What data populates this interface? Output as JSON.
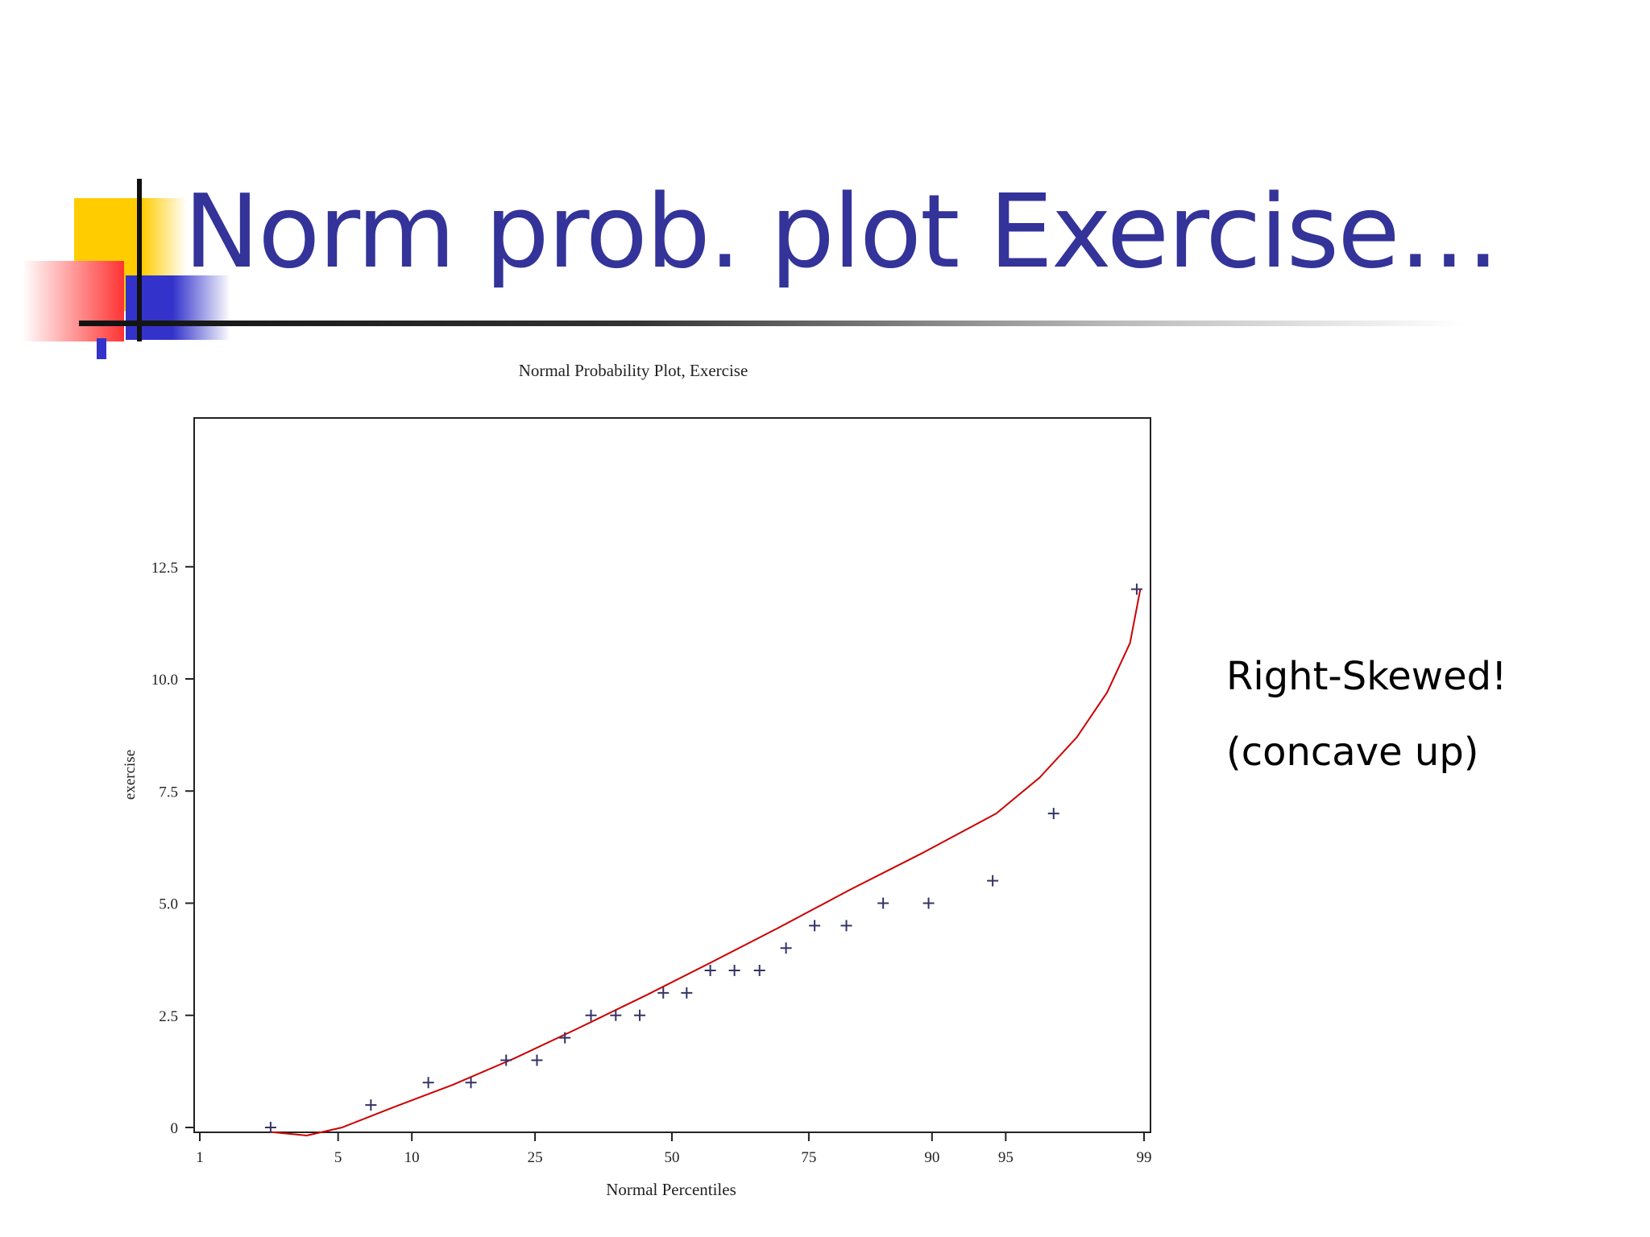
{
  "slide": {
    "title": "Norm prob. plot Exercise…",
    "notes": [
      "Right-Skewed!",
      "(concave up)"
    ]
  },
  "colors": {
    "title": "#333399",
    "deco_yellow": "#ffcc00",
    "deco_red": "#ff3333",
    "deco_blue": "#3333cc",
    "fit_curve": "#cc0000",
    "marker": "#333366"
  },
  "chart_data": {
    "type": "scatter",
    "title": "Normal Probability Plot, Exercise",
    "xlabel": "Normal Percentiles",
    "ylabel": "exercise",
    "x_scale": "normal-probability",
    "x_ticks": [
      1,
      5,
      10,
      25,
      50,
      75,
      90,
      95,
      99
    ],
    "y_ticks": [
      "0",
      "2.5",
      "5.0",
      "7.5",
      "10.0",
      "12.5"
    ],
    "ylim": [
      0,
      12.5
    ],
    "grid": false,
    "series": [
      {
        "marker": "plus",
        "points": [
          {
            "x": 2.4,
            "y": 0
          },
          {
            "x": 6.9,
            "y": 0.5
          },
          {
            "x": 11.5,
            "y": 1
          },
          {
            "x": 16.1,
            "y": 1
          },
          {
            "x": 20.7,
            "y": 1.5
          },
          {
            "x": 25.3,
            "y": 1.5
          },
          {
            "x": 29.9,
            "y": 2
          },
          {
            "x": 34.5,
            "y": 2.5
          },
          {
            "x": 39.1,
            "y": 2.5
          },
          {
            "x": 43.7,
            "y": 2.5
          },
          {
            "x": 48.3,
            "y": 3
          },
          {
            "x": 52.9,
            "y": 3
          },
          {
            "x": 57.5,
            "y": 3.5
          },
          {
            "x": 62.1,
            "y": 3.5
          },
          {
            "x": 66.7,
            "y": 3.5
          },
          {
            "x": 71.3,
            "y": 4
          },
          {
            "x": 75.9,
            "y": 4.5
          },
          {
            "x": 80.5,
            "y": 4.5
          },
          {
            "x": 85.1,
            "y": 5
          },
          {
            "x": 89.7,
            "y": 5
          },
          {
            "x": 94.3,
            "y": 5.5
          },
          {
            "x": 97.0,
            "y": 7
          },
          {
            "x": 98.9,
            "y": 12
          }
        ]
      },
      {
        "type": "line",
        "role": "fitted-curve",
        "points": [
          {
            "x": 2.4,
            "y": -0.1
          },
          {
            "x": 3.6,
            "y": -0.18
          },
          {
            "x": 5.2,
            "y": 0
          },
          {
            "x": 8.5,
            "y": 0.45
          },
          {
            "x": 14,
            "y": 0.95
          },
          {
            "x": 22,
            "y": 1.55
          },
          {
            "x": 32,
            "y": 2.2
          },
          {
            "x": 45,
            "y": 2.95
          },
          {
            "x": 58,
            "y": 3.7
          },
          {
            "x": 70,
            "y": 4.45
          },
          {
            "x": 81,
            "y": 5.3
          },
          {
            "x": 89,
            "y": 6.1
          },
          {
            "x": 94.5,
            "y": 7.0
          },
          {
            "x": 96.5,
            "y": 7.8
          },
          {
            "x": 97.7,
            "y": 8.7
          },
          {
            "x": 98.4,
            "y": 9.7
          },
          {
            "x": 98.8,
            "y": 10.8
          },
          {
            "x": 98.95,
            "y": 12
          }
        ]
      }
    ]
  }
}
